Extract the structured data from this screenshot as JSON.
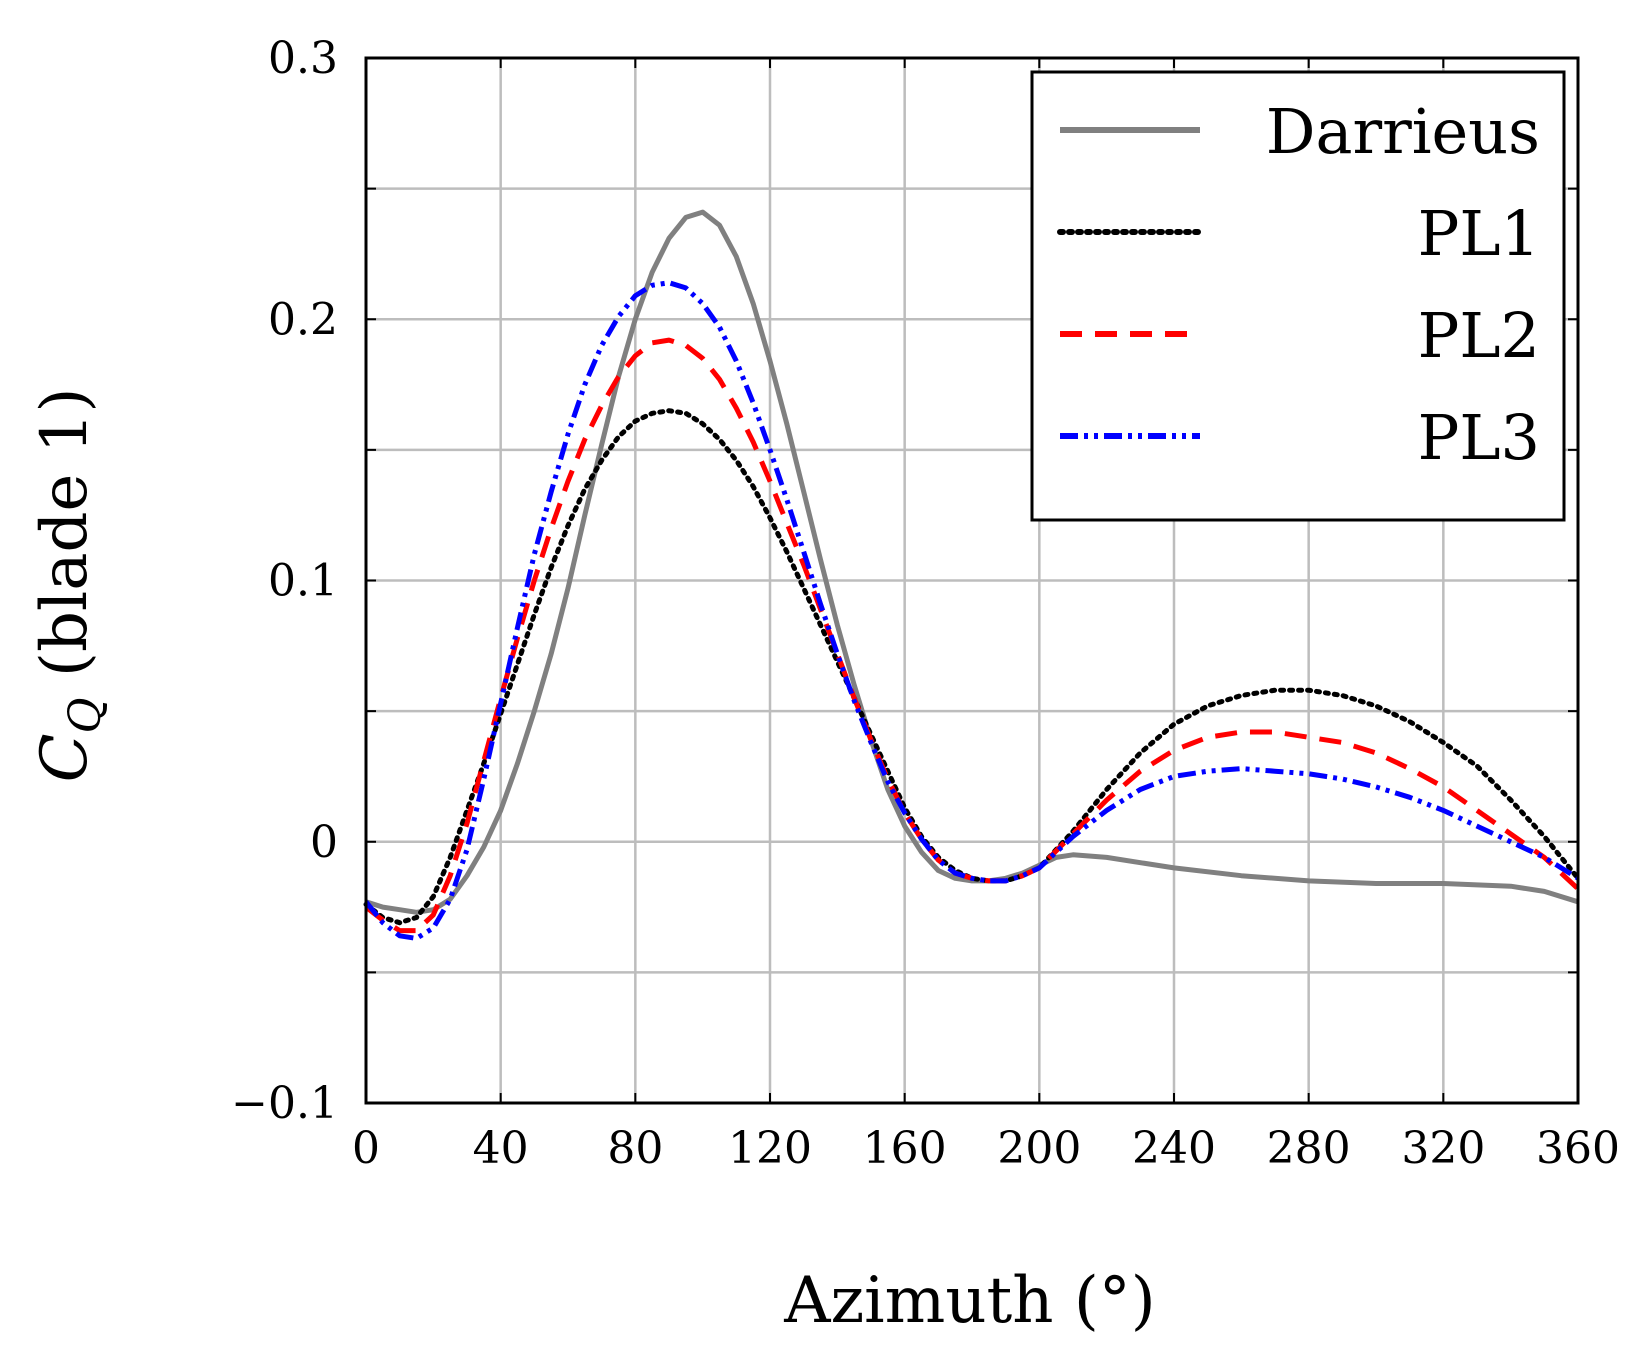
{
  "chart_data": {
    "type": "line",
    "title": "",
    "xlabel": "Azimuth (°)",
    "ylabel_main": "C",
    "ylabel_sub": "Q",
    "ylabel_rest": " (blade 1)",
    "xlim": [
      0,
      360
    ],
    "ylim": [
      -0.1,
      0.3
    ],
    "xticks": [
      0,
      40,
      80,
      120,
      160,
      200,
      240,
      280,
      320,
      360
    ],
    "xtick_labels": [
      "0",
      "40",
      "80",
      "120",
      "160",
      "200",
      "240",
      "280",
      "320",
      "360"
    ],
    "yticks": [
      -0.1,
      0,
      0.1,
      0.2,
      0.3
    ],
    "ytick_labels": [
      "−0.1",
      "0",
      "0.1",
      "0.2",
      "0.3"
    ],
    "minor_yticks": [
      -0.05,
      0.05,
      0.15,
      0.25
    ],
    "grid": true,
    "legend_position": "top-right",
    "series": [
      {
        "name": "Darrieus",
        "color": "#808080",
        "dash": "solid",
        "x": [
          0,
          5,
          10,
          15,
          20,
          25,
          30,
          35,
          40,
          45,
          50,
          55,
          60,
          65,
          70,
          75,
          80,
          85,
          90,
          95,
          100,
          105,
          110,
          115,
          120,
          125,
          130,
          135,
          140,
          145,
          150,
          155,
          160,
          165,
          170,
          175,
          180,
          185,
          190,
          195,
          200,
          205,
          210,
          220,
          240,
          260,
          280,
          300,
          320,
          340,
          350,
          360
        ],
        "values": [
          -0.023,
          -0.025,
          -0.026,
          -0.027,
          -0.026,
          -0.022,
          -0.013,
          -0.002,
          0.012,
          0.03,
          0.05,
          0.072,
          0.097,
          0.125,
          0.152,
          0.178,
          0.2,
          0.218,
          0.231,
          0.239,
          0.241,
          0.236,
          0.224,
          0.206,
          0.184,
          0.16,
          0.134,
          0.108,
          0.083,
          0.06,
          0.039,
          0.02,
          0.006,
          -0.004,
          -0.011,
          -0.014,
          -0.015,
          -0.015,
          -0.014,
          -0.012,
          -0.009,
          -0.006,
          -0.005,
          -0.006,
          -0.01,
          -0.013,
          -0.015,
          -0.016,
          -0.016,
          -0.017,
          -0.019,
          -0.023
        ]
      },
      {
        "name": "PL1",
        "color": "#000000",
        "dash": "dotted",
        "x": [
          0,
          5,
          10,
          15,
          20,
          25,
          30,
          35,
          40,
          45,
          50,
          55,
          60,
          65,
          70,
          75,
          80,
          85,
          90,
          95,
          100,
          105,
          110,
          115,
          120,
          125,
          130,
          135,
          140,
          145,
          150,
          155,
          160,
          165,
          170,
          175,
          180,
          185,
          190,
          195,
          200,
          210,
          220,
          230,
          240,
          250,
          260,
          270,
          280,
          290,
          300,
          310,
          320,
          330,
          340,
          350,
          360
        ],
        "values": [
          -0.024,
          -0.029,
          -0.031,
          -0.029,
          -0.021,
          -0.006,
          0.012,
          0.03,
          0.049,
          0.068,
          0.087,
          0.105,
          0.121,
          0.135,
          0.146,
          0.155,
          0.161,
          0.164,
          0.165,
          0.164,
          0.16,
          0.154,
          0.146,
          0.136,
          0.124,
          0.111,
          0.097,
          0.083,
          0.069,
          0.055,
          0.041,
          0.027,
          0.013,
          0.002,
          -0.006,
          -0.011,
          -0.014,
          -0.015,
          -0.015,
          -0.013,
          -0.01,
          0.004,
          0.02,
          0.034,
          0.045,
          0.052,
          0.056,
          0.058,
          0.058,
          0.056,
          0.052,
          0.046,
          0.038,
          0.029,
          0.016,
          0.002,
          -0.014
        ]
      },
      {
        "name": "PL2",
        "color": "#ff0000",
        "dash": "dashed",
        "x": [
          0,
          5,
          10,
          15,
          20,
          25,
          30,
          35,
          40,
          45,
          50,
          55,
          60,
          65,
          70,
          75,
          80,
          85,
          90,
          95,
          100,
          105,
          110,
          115,
          120,
          125,
          130,
          135,
          140,
          145,
          150,
          155,
          160,
          165,
          170,
          175,
          180,
          185,
          190,
          195,
          200,
          210,
          220,
          230,
          240,
          250,
          260,
          270,
          280,
          290,
          300,
          310,
          320,
          330,
          340,
          350,
          360
        ],
        "values": [
          -0.025,
          -0.03,
          -0.034,
          -0.034,
          -0.028,
          -0.013,
          0.007,
          0.031,
          0.055,
          0.078,
          0.1,
          0.12,
          0.138,
          0.154,
          0.167,
          0.178,
          0.186,
          0.191,
          0.192,
          0.19,
          0.185,
          0.177,
          0.166,
          0.153,
          0.138,
          0.122,
          0.106,
          0.089,
          0.072,
          0.055,
          0.039,
          0.024,
          0.011,
          0.001,
          -0.007,
          -0.012,
          -0.014,
          -0.015,
          -0.015,
          -0.013,
          -0.01,
          0.003,
          0.016,
          0.027,
          0.035,
          0.04,
          0.042,
          0.042,
          0.04,
          0.038,
          0.034,
          0.028,
          0.021,
          0.012,
          0.003,
          -0.006,
          -0.018
        ]
      },
      {
        "name": "PL3",
        "color": "#0000ff",
        "dash": "dash-dot-dot",
        "x": [
          0,
          5,
          10,
          15,
          20,
          25,
          30,
          35,
          40,
          45,
          50,
          55,
          60,
          65,
          70,
          75,
          80,
          85,
          90,
          95,
          100,
          105,
          110,
          115,
          120,
          125,
          130,
          135,
          140,
          145,
          150,
          155,
          160,
          165,
          170,
          175,
          180,
          185,
          190,
          195,
          200,
          210,
          220,
          230,
          240,
          250,
          260,
          270,
          280,
          290,
          300,
          310,
          320,
          330,
          340,
          350,
          360
        ],
        "values": [
          -0.023,
          -0.031,
          -0.036,
          -0.037,
          -0.033,
          -0.022,
          -0.003,
          0.024,
          0.053,
          0.082,
          0.11,
          0.134,
          0.156,
          0.175,
          0.19,
          0.201,
          0.209,
          0.213,
          0.214,
          0.212,
          0.206,
          0.197,
          0.184,
          0.168,
          0.15,
          0.131,
          0.111,
          0.091,
          0.072,
          0.054,
          0.038,
          0.023,
          0.011,
          0.001,
          -0.007,
          -0.012,
          -0.014,
          -0.015,
          -0.015,
          -0.013,
          -0.01,
          0.002,
          0.012,
          0.02,
          0.025,
          0.027,
          0.028,
          0.027,
          0.026,
          0.024,
          0.021,
          0.017,
          0.012,
          0.006,
          0.0,
          -0.006,
          -0.014
        ]
      }
    ]
  }
}
